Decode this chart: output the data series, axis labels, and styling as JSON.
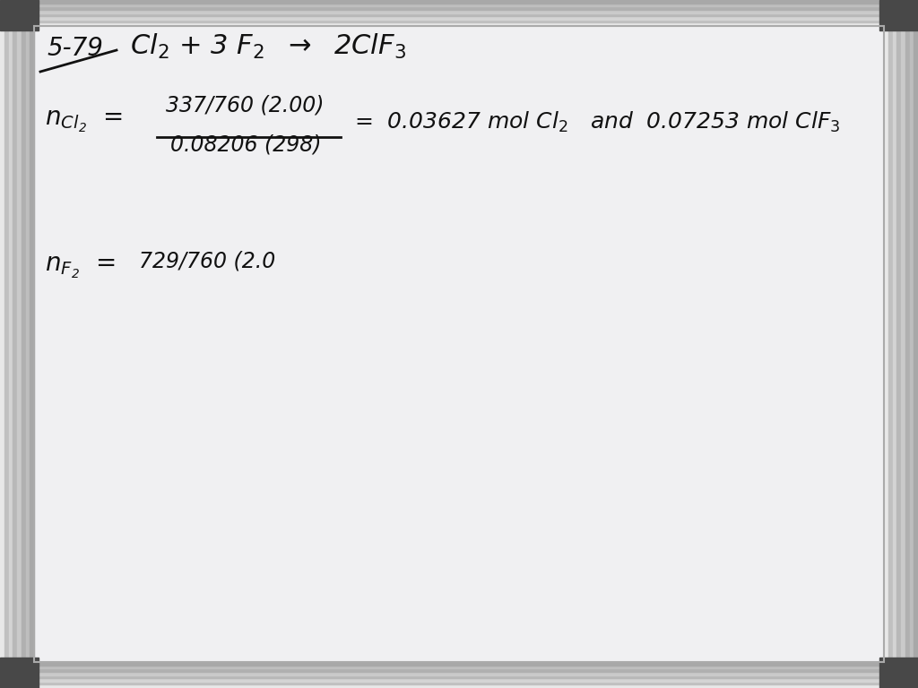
{
  "bg_outer": "#c8c8c8",
  "board_color": "#f0f0f2",
  "text_color": "#111111",
  "frame_light": "#d8d8d8",
  "frame_mid": "#b0b0b0",
  "frame_dark": "#888888",
  "corner_color": "#484848",
  "frame_thickness": 0.038,
  "figsize": [
    10.24,
    7.68
  ],
  "dpi": 100
}
